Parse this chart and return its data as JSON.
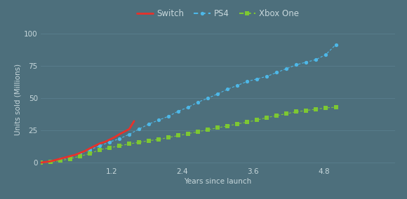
{
  "xlabel": "Years since launch",
  "ylabel": "Units sold (Millions)",
  "xlim": [
    0,
    6
  ],
  "ylim": [
    -2,
    100
  ],
  "xticks": [
    1.2,
    2.4,
    3.6,
    4.8
  ],
  "yticks": [
    0,
    25,
    50,
    75,
    100
  ],
  "background_color": "#4d6f7c",
  "grid_color": "#5c8191",
  "text_color": "#c8d8dc",
  "switch": {
    "label": "Switch",
    "color": "#e8312a",
    "x": [
      0.0,
      0.083,
      0.167,
      0.25,
      0.333,
      0.417,
      0.5,
      0.583,
      0.667,
      0.75,
      0.833,
      0.917,
      1.0,
      1.083,
      1.167,
      1.25,
      1.333,
      1.417,
      1.5,
      1.583
    ],
    "y": [
      0.0,
      0.5,
      1.0,
      2.0,
      3.0,
      4.0,
      5.0,
      6.0,
      7.5,
      9.0,
      11.0,
      13.0,
      14.86,
      16.0,
      17.8,
      19.67,
      22.0,
      24.0,
      26.0,
      32.27
    ]
  },
  "ps4": {
    "label": "PS4",
    "color": "#4db8e8",
    "x": [
      0.0,
      0.167,
      0.333,
      0.5,
      0.667,
      0.833,
      1.0,
      1.167,
      1.333,
      1.5,
      1.667,
      1.833,
      2.0,
      2.167,
      2.333,
      2.5,
      2.667,
      2.833,
      3.0,
      3.167,
      3.333,
      3.5,
      3.667,
      3.833,
      4.0,
      4.167,
      4.333,
      4.5,
      4.667,
      4.833,
      5.0
    ],
    "y": [
      0.0,
      1.0,
      2.5,
      4.2,
      7.0,
      10.0,
      13.0,
      16.0,
      18.5,
      22.0,
      26.0,
      30.0,
      33.0,
      36.0,
      40.0,
      43.0,
      47.0,
      50.0,
      53.4,
      57.0,
      60.0,
      63.0,
      65.0,
      67.0,
      70.0,
      73.0,
      76.0,
      78.0,
      80.0,
      84.0,
      91.6
    ]
  },
  "xbox": {
    "label": "Xbox One",
    "color": "#7dc832",
    "x": [
      0.0,
      0.167,
      0.333,
      0.5,
      0.667,
      0.833,
      1.0,
      1.167,
      1.333,
      1.5,
      1.667,
      1.833,
      2.0,
      2.167,
      2.333,
      2.5,
      2.667,
      2.833,
      3.0,
      3.167,
      3.333,
      3.5,
      3.667,
      3.833,
      4.0,
      4.167,
      4.333,
      4.5,
      4.667,
      4.833,
      5.0
    ],
    "y": [
      0.0,
      0.5,
      1.5,
      3.0,
      5.0,
      7.0,
      10.0,
      11.5,
      13.0,
      14.5,
      15.8,
      17.0,
      18.0,
      19.5,
      21.0,
      22.5,
      24.0,
      25.5,
      27.0,
      28.5,
      30.0,
      31.5,
      33.0,
      35.0,
      36.5,
      38.0,
      39.5,
      40.5,
      41.5,
      42.5,
      43.0
    ]
  },
  "legend_fontsize": 8.5,
  "axis_fontsize": 7.5,
  "tick_fontsize": 7.5
}
